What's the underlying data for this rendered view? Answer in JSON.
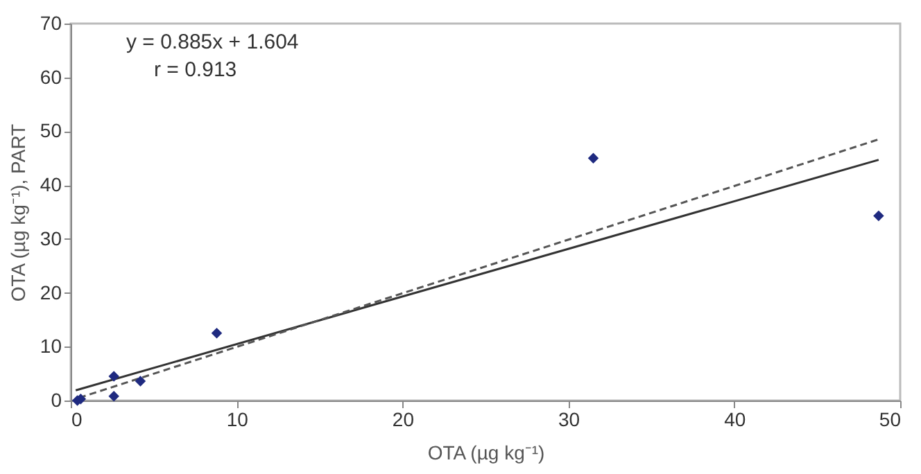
{
  "chart_data": {
    "type": "scatter",
    "xlabel": "OTA (µg kg⁻¹)",
    "ylabel": "OTA (µg kg⁻¹), PART",
    "xlim": [
      0,
      50
    ],
    "xticks": [
      0,
      10,
      20,
      30,
      40,
      50
    ],
    "ylim": [
      0,
      70
    ],
    "yticks": [
      0,
      10,
      20,
      30,
      40,
      50,
      60,
      70
    ],
    "grid": false,
    "annotations": [
      "y = 0.885x + 1.604",
      "r = 0.913"
    ],
    "series": [
      {
        "color": "#1f2a80",
        "marker": "diamond",
        "x": [
          0.4,
          0.6,
          2.6,
          2.6,
          4.2,
          8.8,
          31.5,
          48.7
        ],
        "values": [
          0,
          0.3,
          0.8,
          4.5,
          3.6,
          12.5,
          45,
          34.3
        ]
      },
      {
        "type": "line",
        "color": "#333333",
        "line_style": "solid",
        "x": [
          0.3,
          48.7
        ],
        "values": [
          1.9,
          44.7
        ]
      },
      {
        "type": "line",
        "color": "#555555",
        "line_style": "dashed",
        "x": [
          0.5,
          48.7
        ],
        "values": [
          0.5,
          48.5
        ]
      }
    ]
  }
}
